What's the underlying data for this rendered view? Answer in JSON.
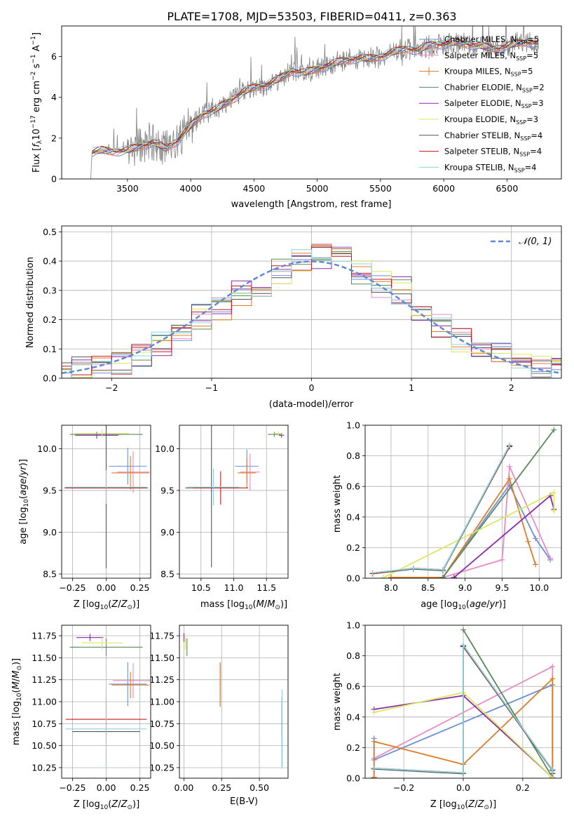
{
  "title": "PLATE=1708, MJD=53503, FIBERID=0411, z=0.363",
  "colors": {
    "Chabrier MILES": "#6a8ed8",
    "Salpeter MILES": "#e88cc6",
    "Kroupa MILES": "#e07b28",
    "Chabrier ELODIE": "#5a8a5a",
    "Salpeter ELODIE": "#8c2aa8",
    "Kroupa ELODIE": "#d8ea60",
    "Chabrier STELIB": "#555555",
    "Salpeter STELIB": "#c41a1a",
    "Kroupa STELIB": "#8ed4dc"
  },
  "chart_data": [
    {
      "type": "line",
      "panel": "spectrum",
      "title": "PLATE=1708, MJD=53503, FIBERID=0411, z=0.363",
      "xlabel": "wavelength [Angstrom, rest frame]",
      "ylabel": "Flux [f_λ 10^-17 erg cm^-2 s^-1 A^-1]",
      "xlim": [
        2980,
        6930
      ],
      "ylim": [
        0,
        7.5
      ],
      "xticks": [
        3500,
        4000,
        4500,
        5000,
        5500,
        6000,
        6500
      ],
      "yticks": [
        0,
        2,
        4,
        6
      ],
      "legend": "top-right",
      "series": [
        {
          "name": "Chabrier MILES, N_SSP=5"
        },
        {
          "name": "Salpeter MILES, N_SSP=5"
        },
        {
          "name": "Kroupa MILES, N_SSP=5"
        },
        {
          "name": "Chabrier ELODIE, N_SSP=2"
        },
        {
          "name": "Salpeter ELODIE, N_SSP=3"
        },
        {
          "name": "Kroupa ELODIE, N_SSP=3"
        },
        {
          "name": "Chabrier STELIB, N_SSP=4"
        },
        {
          "name": "Salpeter STELIB, N_SSP=4"
        },
        {
          "name": "Kroupa STELIB, N_SSP=4"
        }
      ],
      "continuum": {
        "x": [
          3220,
          3300,
          3400,
          3500,
          3600,
          3700,
          3800,
          3900,
          4000,
          4100,
          4200,
          4300,
          4400,
          4500,
          4600,
          4700,
          4800,
          4900,
          5000,
          5100,
          5200,
          5300,
          5400,
          5500,
          5600,
          5700,
          5800,
          5900,
          6000,
          6100,
          6200,
          6300,
          6400,
          6500,
          6600,
          6700,
          6750
        ],
        "y": [
          1.3,
          1.4,
          1.35,
          1.4,
          1.6,
          1.8,
          1.5,
          1.9,
          2.6,
          3.2,
          3.4,
          3.8,
          4.2,
          4.5,
          4.6,
          4.9,
          5.3,
          5.2,
          5.4,
          5.6,
          5.8,
          5.9,
          5.9,
          6.0,
          6.2,
          6.4,
          6.3,
          6.6,
          6.6,
          6.7,
          6.6,
          6.5,
          6.4,
          6.5,
          6.7,
          6.7,
          6.6
        ]
      }
    },
    {
      "type": "line",
      "panel": "residual-histogram",
      "xlabel": "(data-model)/error",
      "ylabel": "Normed distribution",
      "xlim": [
        -2.5,
        2.5
      ],
      "ylim": [
        0,
        0.52
      ],
      "xticks": [
        -2,
        -1,
        0,
        1,
        2
      ],
      "yticks": [
        0.0,
        0.1,
        0.2,
        0.3,
        0.4,
        0.5
      ],
      "grid": true,
      "legend": "top-right",
      "reference_curve": {
        "name": "N(0,1)",
        "mean": 0,
        "sigma": 1
      },
      "bin_edges": [
        -2.6,
        -2.4,
        -2.2,
        -2.0,
        -1.8,
        -1.6,
        -1.4,
        -1.2,
        -1.0,
        -0.8,
        -0.6,
        -0.4,
        -0.2,
        0.0,
        0.2,
        0.4,
        0.6,
        0.8,
        1.0,
        1.2,
        1.4,
        1.6,
        1.8,
        2.0,
        2.2,
        2.4,
        2.6
      ],
      "base_values": [
        0.015,
        0.03,
        0.045,
        0.06,
        0.085,
        0.115,
        0.155,
        0.21,
        0.245,
        0.29,
        0.325,
        0.36,
        0.4,
        0.42,
        0.41,
        0.36,
        0.32,
        0.3,
        0.22,
        0.175,
        0.135,
        0.12,
        0.09,
        0.06,
        0.04,
        0.025
      ]
    },
    {
      "type": "scatter",
      "panel": "age-vs-Z",
      "xlabel": "Z [log10(Z/Z⊙)]",
      "ylabel": "age [log10(age/yr)]",
      "xlim": [
        -0.33,
        0.33
      ],
      "ylim": [
        8.45,
        10.28
      ],
      "xticks": [
        -0.25,
        0.0,
        0.25
      ],
      "xticklabels": [
        "−0.25",
        "0.00",
        "0.25"
      ],
      "yticks": [
        8.5,
        9.0,
        9.5,
        10.0
      ],
      "grid": true,
      "points": [
        {
          "series": "Chabrier MILES",
          "x": 0.16,
          "y": 9.79,
          "xerr": 0.14,
          "yerr": 0.22
        },
        {
          "series": "Salpeter MILES",
          "x": 0.2,
          "y": 9.72,
          "xerr": 0.12,
          "yerr": 0.25
        },
        {
          "series": "Kroupa MILES",
          "x": 0.18,
          "y": 9.71,
          "xerr": 0.14,
          "yerr": 0.2
        },
        {
          "series": "Chabrier ELODIE",
          "x": 0.0,
          "y": 10.17,
          "xerr": 0.27,
          "yerr": 0.05
        },
        {
          "series": "Salpeter ELODIE",
          "x": -0.07,
          "y": 10.16,
          "xerr": 0.16,
          "yerr": 0.04
        },
        {
          "series": "Kroupa ELODIE",
          "x": -0.03,
          "y": 10.18,
          "xerr": 0.2,
          "yerr": 0.05
        },
        {
          "series": "Chabrier STELIB",
          "x": 0.0,
          "y": 9.53,
          "xerr": 0.31,
          "yerr": 0.96
        },
        {
          "series": "Salpeter STELIB",
          "x": 0.0,
          "y": 9.53,
          "xerr": 0.3,
          "yerr": 0.2
        },
        {
          "series": "Kroupa STELIB",
          "x": 0.0,
          "y": 9.54,
          "xerr": 0.3,
          "yerr": 0.2
        }
      ]
    },
    {
      "type": "scatter",
      "panel": "age-vs-mass",
      "xlabel": "mass [log10(M/M⊙)]",
      "ylim": [
        8.45,
        10.28
      ],
      "xlim": [
        10.17,
        11.83
      ],
      "xticks": [
        10.5,
        11.0,
        11.5
      ],
      "yticks": [
        8.5,
        9.0,
        9.5,
        10.0
      ],
      "grid": true,
      "points": [
        {
          "series": "Chabrier MILES",
          "x": 11.2,
          "y": 9.79,
          "xerr": 0.18,
          "yerr": 0.2
        },
        {
          "series": "Salpeter MILES",
          "x": 11.25,
          "y": 9.72,
          "xerr": 0.15,
          "yerr": 0.22
        },
        {
          "series": "Kroupa MILES",
          "x": 11.2,
          "y": 9.71,
          "xerr": 0.14,
          "yerr": 0.18
        },
        {
          "series": "Chabrier ELODIE",
          "x": 11.62,
          "y": 10.17,
          "xerr": 0.1,
          "yerr": 0.03
        },
        {
          "series": "Salpeter ELODIE",
          "x": 11.73,
          "y": 10.16,
          "xerr": 0.04,
          "yerr": 0.03
        },
        {
          "series": "Kroupa ELODIE",
          "x": 11.68,
          "y": 10.18,
          "xerr": 0.06,
          "yerr": 0.03
        },
        {
          "series": "Chabrier STELIB",
          "x": 10.66,
          "y": 9.53,
          "xerr": 0.4,
          "yerr": 0.95
        },
        {
          "series": "Salpeter STELIB",
          "x": 10.8,
          "y": 9.53,
          "xerr": 0.42,
          "yerr": 0.2
        },
        {
          "series": "Kroupa STELIB",
          "x": 10.69,
          "y": 9.54,
          "xerr": 0.4,
          "yerr": 0.22
        }
      ]
    },
    {
      "type": "line",
      "panel": "mass-weight-vs-age",
      "xlabel": "age [log10(age/yr)]",
      "ylabel": "mass weight",
      "xlim": [
        7.65,
        10.3
      ],
      "ylim": [
        0.0,
        1.0
      ],
      "xticks": [
        8.0,
        8.5,
        9.0,
        9.5,
        10.0
      ],
      "yticks": [
        0.0,
        0.2,
        0.4,
        0.6,
        0.8,
        1.0
      ],
      "grid": true,
      "series": [
        {
          "series": "Chabrier MILES",
          "x": [
            8.0,
            8.7,
            9.6,
            9.95,
            10.15
          ],
          "y": [
            0.005,
            0.005,
            0.61,
            0.26,
            0.12
          ]
        },
        {
          "series": "Salpeter MILES",
          "x": [
            8.0,
            8.7,
            9.5,
            9.6,
            10.15
          ],
          "y": [
            0.005,
            0.005,
            0.12,
            0.73,
            0.13
          ]
        },
        {
          "series": "Kroupa MILES",
          "x": [
            8.0,
            8.7,
            9.6,
            9.85,
            9.95
          ],
          "y": [
            0.005,
            0.005,
            0.65,
            0.24,
            0.09
          ]
        },
        {
          "series": "Chabrier ELODIE",
          "x": [
            8.7,
            10.2
          ],
          "y": [
            0.005,
            0.97
          ]
        },
        {
          "series": "Salpeter ELODIE",
          "x": [
            8.85,
            10.15,
            10.2
          ],
          "y": [
            0.005,
            0.54,
            0.45
          ]
        },
        {
          "series": "Kroupa ELODIE",
          "x": [
            7.9,
            10.2,
            10.2
          ],
          "y": [
            0.005,
            0.56,
            0.44
          ]
        },
        {
          "series": "Chabrier STELIB",
          "x": [
            7.75,
            8.3,
            8.7,
            9.6
          ],
          "y": [
            0.03,
            0.06,
            0.05,
            0.86
          ]
        },
        {
          "series": "Salpeter STELIB",
          "x": [
            7.75,
            8.3,
            8.7,
            9.6
          ],
          "y": [
            0.03,
            0.065,
            0.055,
            0.865
          ]
        },
        {
          "series": "Kroupa STELIB",
          "x": [
            7.75,
            8.3,
            8.7,
            9.6
          ],
          "y": [
            0.035,
            0.065,
            0.055,
            0.87
          ]
        }
      ]
    },
    {
      "type": "scatter",
      "panel": "mass-vs-Z",
      "xlabel": "Z [log10(Z/Z⊙)]",
      "ylabel": "mass [log10(M/M⊙)]",
      "xlim": [
        -0.33,
        0.33
      ],
      "ylim": [
        10.13,
        11.87
      ],
      "xticks": [
        -0.25,
        0.0,
        0.25
      ],
      "xticklabels": [
        "−0.25",
        "0.00",
        "0.25"
      ],
      "yticks": [
        10.25,
        10.5,
        10.75,
        11.0,
        11.25,
        11.5,
        11.75
      ],
      "grid": true,
      "points": [
        {
          "series": "Chabrier MILES",
          "x": 0.16,
          "y": 11.2,
          "xerr": 0.14,
          "yerr": 0.25
        },
        {
          "series": "Salpeter MILES",
          "x": 0.2,
          "y": 11.24,
          "xerr": 0.15,
          "yerr": 0.2
        },
        {
          "series": "Kroupa MILES",
          "x": 0.18,
          "y": 11.19,
          "xerr": 0.14,
          "yerr": 0.15
        },
        {
          "series": "Chabrier ELODIE",
          "x": 0.0,
          "y": 11.62,
          "xerr": 0.27,
          "yerr": 0.1
        },
        {
          "series": "Salpeter ELODIE",
          "x": -0.12,
          "y": 11.73,
          "xerr": 0.1,
          "yerr": 0.04
        },
        {
          "series": "Kroupa ELODIE",
          "x": -0.03,
          "y": 11.67,
          "xerr": 0.15,
          "yerr": 0.08
        },
        {
          "series": "Chabrier STELIB",
          "x": 0.0,
          "y": 10.66,
          "xerr": 0.25,
          "yerr": 0.4
        },
        {
          "series": "Salpeter STELIB",
          "x": 0.0,
          "y": 10.8,
          "xerr": 0.3,
          "yerr": 0.2
        },
        {
          "series": "Kroupa STELIB",
          "x": 0.0,
          "y": 10.69,
          "xerr": 0.3,
          "yerr": 0.45
        }
      ]
    },
    {
      "type": "scatter",
      "panel": "mass-vs-EBV",
      "xlabel": "E(B-V)",
      "xlim": [
        -0.03,
        0.69
      ],
      "ylim": [
        10.13,
        11.87
      ],
      "xticks": [
        0.0,
        0.25,
        0.5
      ],
      "xticklabels": [
        "0.00",
        "0.25",
        "0.50"
      ],
      "yticks": [
        10.25,
        10.5,
        10.75,
        11.0,
        11.25,
        11.5,
        11.75
      ],
      "grid": true,
      "points": [
        {
          "series": "Chabrier MILES",
          "x": 0.24,
          "y": 11.2,
          "xerr": 0.0,
          "yerr": 0.25
        },
        {
          "series": "Salpeter MILES",
          "x": 0.24,
          "y": 11.24,
          "xerr": 0.0,
          "yerr": 0.2
        },
        {
          "series": "Kroupa MILES",
          "x": 0.24,
          "y": 11.19,
          "xerr": 0.0,
          "yerr": 0.25
        },
        {
          "series": "Chabrier ELODIE",
          "x": 0.02,
          "y": 11.62,
          "xerr": 0.0,
          "yerr": 0.1
        },
        {
          "series": "Salpeter ELODIE",
          "x": 0.0,
          "y": 11.73,
          "xerr": 0.0,
          "yerr": 0.05
        },
        {
          "series": "Kroupa ELODIE",
          "x": 0.01,
          "y": 11.67,
          "xerr": 0.0,
          "yerr": 0.08
        },
        {
          "series": "Chabrier STELIB",
          "x": 0.65,
          "y": 10.66,
          "xerr": 0.0,
          "yerr": 0.4
        },
        {
          "series": "Salpeter STELIB",
          "x": 0.65,
          "y": 10.8,
          "xerr": 0.0,
          "yerr": 0.2
        },
        {
          "series": "Kroupa STELIB",
          "x": 0.65,
          "y": 10.69,
          "xerr": 0.0,
          "yerr": 0.45
        }
      ]
    },
    {
      "type": "line",
      "panel": "mass-weight-vs-Z",
      "xlabel": "Z [log10(Z/Z⊙)]",
      "ylabel": "mass weight",
      "xlim": [
        -0.33,
        0.33
      ],
      "ylim": [
        0.0,
        1.0
      ],
      "xticks": [
        -0.2,
        0.0,
        0.2
      ],
      "xticklabels": [
        "−0.2",
        "0.0",
        "0.2"
      ],
      "yticks": [
        0.0,
        0.2,
        0.4,
        0.6,
        0.8,
        1.0
      ],
      "grid": true,
      "series": [
        {
          "series": "Chabrier MILES",
          "x": [
            -0.3,
            -0.3,
            0.3,
            0.3
          ],
          "y": [
            0.26,
            0.12,
            0.61,
            0.005
          ]
        },
        {
          "series": "Salpeter MILES",
          "x": [
            -0.3,
            -0.3,
            0.3,
            0.3
          ],
          "y": [
            0.005,
            0.13,
            0.73,
            0.005
          ]
        },
        {
          "series": "Kroupa MILES",
          "x": [
            -0.3,
            -0.3,
            0.0,
            0.3,
            0.3
          ],
          "y": [
            0.005,
            0.24,
            0.09,
            0.65,
            0.005
          ]
        },
        {
          "series": "Chabrier ELODIE",
          "x": [
            0.0,
            0.3
          ],
          "y": [
            0.97,
            0.005
          ]
        },
        {
          "series": "Salpeter ELODIE",
          "x": [
            -0.3,
            0.0,
            0.3
          ],
          "y": [
            0.45,
            0.54,
            0.005
          ]
        },
        {
          "series": "Kroupa ELODIE",
          "x": [
            -0.3,
            0.0,
            0.3
          ],
          "y": [
            0.43,
            0.56,
            0.005
          ]
        },
        {
          "series": "Chabrier STELIB",
          "x": [
            -0.3,
            0.0,
            0.0,
            0.3,
            0.3
          ],
          "y": [
            0.06,
            0.03,
            0.86,
            0.05,
            0.03
          ]
        },
        {
          "series": "Salpeter STELIB",
          "x": [
            -0.3,
            0.0,
            0.0,
            0.3,
            0.3
          ],
          "y": [
            0.065,
            0.035,
            0.865,
            0.055,
            0.03
          ]
        },
        {
          "series": "Kroupa STELIB",
          "x": [
            -0.3,
            0.0,
            0.0,
            0.3,
            0.3
          ],
          "y": [
            0.065,
            0.035,
            0.87,
            0.055,
            0.035
          ]
        }
      ]
    }
  ]
}
